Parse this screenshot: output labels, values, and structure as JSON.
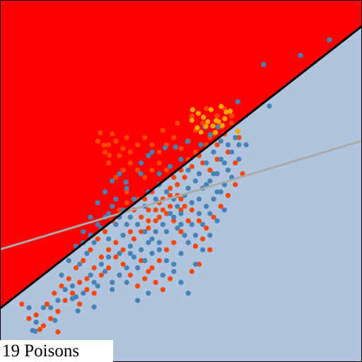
{
  "caption": "19 Poisons",
  "colors": {
    "region_above": "#ff0000",
    "region_below": "#b0c4de",
    "boundary_true": "#000000",
    "boundary_poisoned": "#a9a9a9",
    "class_a": "#4682b4",
    "class_b": "#ff4500",
    "poison": "#ffa500"
  },
  "chart_data": {
    "type": "scatter",
    "xlim": [
      0,
      1
    ],
    "ylim": [
      0,
      1
    ],
    "grid": false,
    "legend": "none",
    "true_boundary": {
      "slope": 0.78,
      "intercept": 0.148
    },
    "poisoned_boundary": {
      "slope": 0.3,
      "intercept": 0.311
    },
    "poison_points": [
      [
        0.532,
        0.697
      ],
      [
        0.548,
        0.687
      ],
      [
        0.562,
        0.676
      ],
      [
        0.574,
        0.664
      ],
      [
        0.588,
        0.652
      ],
      [
        0.604,
        0.664
      ],
      [
        0.621,
        0.672
      ],
      [
        0.636,
        0.693
      ],
      [
        0.657,
        0.637
      ],
      [
        0.53,
        0.668
      ],
      [
        0.569,
        0.651
      ],
      [
        0.597,
        0.667
      ],
      [
        0.614,
        0.653
      ],
      [
        0.583,
        0.697
      ],
      [
        0.555,
        0.635
      ],
      [
        0.595,
        0.634
      ],
      [
        0.611,
        0.706
      ],
      [
        0.545,
        0.647
      ],
      [
        0.625,
        0.69
      ]
    ],
    "class_a_points": [
      [
        0.91,
        0.89
      ],
      [
        0.83,
        0.847
      ],
      [
        0.728,
        0.822
      ],
      [
        0.744,
        0.707
      ],
      [
        0.657,
        0.719
      ],
      [
        0.602,
        0.649
      ],
      [
        0.566,
        0.649
      ],
      [
        0.581,
        0.628
      ],
      [
        0.555,
        0.6
      ],
      [
        0.518,
        0.609
      ],
      [
        0.485,
        0.594
      ],
      [
        0.456,
        0.592
      ],
      [
        0.41,
        0.57
      ],
      [
        0.389,
        0.52
      ],
      [
        0.348,
        0.497
      ],
      [
        0.44,
        0.52
      ],
      [
        0.47,
        0.54
      ],
      [
        0.5,
        0.56
      ],
      [
        0.52,
        0.53
      ],
      [
        0.54,
        0.5
      ],
      [
        0.56,
        0.48
      ],
      [
        0.58,
        0.5
      ],
      [
        0.6,
        0.52
      ],
      [
        0.62,
        0.55
      ],
      [
        0.64,
        0.58
      ],
      [
        0.66,
        0.6
      ],
      [
        0.63,
        0.53
      ],
      [
        0.61,
        0.47
      ],
      [
        0.59,
        0.45
      ],
      [
        0.57,
        0.43
      ],
      [
        0.55,
        0.41
      ],
      [
        0.53,
        0.44
      ],
      [
        0.51,
        0.46
      ],
      [
        0.49,
        0.43
      ],
      [
        0.47,
        0.41
      ],
      [
        0.45,
        0.38
      ],
      [
        0.43,
        0.36
      ],
      [
        0.41,
        0.33
      ],
      [
        0.39,
        0.31
      ],
      [
        0.37,
        0.29
      ],
      [
        0.35,
        0.26
      ],
      [
        0.33,
        0.24
      ],
      [
        0.31,
        0.22
      ],
      [
        0.29,
        0.25
      ],
      [
        0.27,
        0.21
      ],
      [
        0.25,
        0.24
      ],
      [
        0.23,
        0.19
      ],
      [
        0.21,
        0.18
      ],
      [
        0.2,
        0.21
      ],
      [
        0.18,
        0.2
      ],
      [
        0.16,
        0.17
      ],
      [
        0.14,
        0.15
      ],
      [
        0.12,
        0.15
      ],
      [
        0.1,
        0.11
      ],
      [
        0.08,
        0.15
      ],
      [
        0.09,
        0.087
      ],
      [
        0.097,
        0.085
      ],
      [
        0.152,
        0.115
      ],
      [
        0.2,
        0.175
      ],
      [
        0.215,
        0.141
      ],
      [
        0.26,
        0.152
      ],
      [
        0.31,
        0.2
      ],
      [
        0.35,
        0.22
      ],
      [
        0.38,
        0.17
      ],
      [
        0.41,
        0.19
      ],
      [
        0.45,
        0.24
      ],
      [
        0.48,
        0.27
      ],
      [
        0.5,
        0.3
      ],
      [
        0.52,
        0.33
      ],
      [
        0.5,
        0.38
      ],
      [
        0.48,
        0.4
      ],
      [
        0.46,
        0.36
      ],
      [
        0.44,
        0.33
      ],
      [
        0.42,
        0.3
      ],
      [
        0.4,
        0.28
      ],
      [
        0.38,
        0.26
      ],
      [
        0.36,
        0.32
      ],
      [
        0.34,
        0.35
      ],
      [
        0.32,
        0.38
      ],
      [
        0.3,
        0.34
      ],
      [
        0.28,
        0.37
      ],
      [
        0.26,
        0.33
      ],
      [
        0.24,
        0.3
      ],
      [
        0.22,
        0.27
      ],
      [
        0.3,
        0.41
      ],
      [
        0.32,
        0.45
      ],
      [
        0.34,
        0.42
      ],
      [
        0.36,
        0.4
      ],
      [
        0.38,
        0.38
      ],
      [
        0.4,
        0.36
      ],
      [
        0.42,
        0.34
      ],
      [
        0.44,
        0.31
      ],
      [
        0.46,
        0.28
      ],
      [
        0.48,
        0.25
      ],
      [
        0.5,
        0.22
      ],
      [
        0.52,
        0.19
      ],
      [
        0.54,
        0.27
      ],
      [
        0.56,
        0.31
      ],
      [
        0.58,
        0.35
      ],
      [
        0.6,
        0.39
      ],
      [
        0.62,
        0.42
      ],
      [
        0.58,
        0.41
      ],
      [
        0.56,
        0.38
      ],
      [
        0.54,
        0.35
      ],
      [
        0.5,
        0.41
      ],
      [
        0.48,
        0.45
      ],
      [
        0.52,
        0.48
      ],
      [
        0.55,
        0.52
      ],
      [
        0.57,
        0.55
      ],
      [
        0.59,
        0.58
      ],
      [
        0.61,
        0.61
      ],
      [
        0.43,
        0.45
      ],
      [
        0.4,
        0.43
      ],
      [
        0.37,
        0.45
      ],
      [
        0.35,
        0.48
      ],
      [
        0.39,
        0.55
      ],
      [
        0.42,
        0.58
      ],
      [
        0.33,
        0.52
      ],
      [
        0.31,
        0.5
      ],
      [
        0.29,
        0.47
      ],
      [
        0.27,
        0.44
      ],
      [
        0.25,
        0.4
      ],
      [
        0.23,
        0.36
      ],
      [
        0.21,
        0.32
      ],
      [
        0.19,
        0.28
      ],
      [
        0.17,
        0.24
      ],
      [
        0.44,
        0.49
      ],
      [
        0.46,
        0.47
      ],
      [
        0.41,
        0.47
      ],
      [
        0.36,
        0.3
      ],
      [
        0.33,
        0.3
      ],
      [
        0.3,
        0.29
      ],
      [
        0.28,
        0.27
      ],
      [
        0.26,
        0.22
      ],
      [
        0.49,
        0.37
      ],
      [
        0.51,
        0.35
      ],
      [
        0.53,
        0.38
      ],
      [
        0.55,
        0.45
      ],
      [
        0.57,
        0.49
      ],
      [
        0.6,
        0.47
      ],
      [
        0.62,
        0.49
      ],
      [
        0.64,
        0.51
      ],
      [
        0.66,
        0.56
      ],
      [
        0.68,
        0.6
      ],
      [
        0.65,
        0.62
      ],
      [
        0.63,
        0.6
      ],
      [
        0.61,
        0.56
      ],
      [
        0.59,
        0.52
      ],
      [
        0.35,
        0.38
      ],
      [
        0.33,
        0.4
      ],
      [
        0.31,
        0.43
      ],
      [
        0.29,
        0.4
      ],
      [
        0.27,
        0.38
      ],
      [
        0.25,
        0.35
      ],
      [
        0.23,
        0.33
      ]
    ],
    "class_b_points": [
      [
        0.277,
        0.633
      ],
      [
        0.287,
        0.599
      ],
      [
        0.302,
        0.571
      ],
      [
        0.3,
        0.6
      ],
      [
        0.32,
        0.61
      ],
      [
        0.34,
        0.59
      ],
      [
        0.36,
        0.58
      ],
      [
        0.38,
        0.6
      ],
      [
        0.4,
        0.62
      ],
      [
        0.42,
        0.6
      ],
      [
        0.44,
        0.58
      ],
      [
        0.46,
        0.6
      ],
      [
        0.48,
        0.62
      ],
      [
        0.5,
        0.59
      ],
      [
        0.52,
        0.61
      ],
      [
        0.54,
        0.64
      ],
      [
        0.56,
        0.66
      ],
      [
        0.58,
        0.62
      ],
      [
        0.6,
        0.6
      ],
      [
        0.62,
        0.63
      ],
      [
        0.64,
        0.66
      ],
      [
        0.66,
        0.62
      ],
      [
        0.6,
        0.56
      ],
      [
        0.58,
        0.53
      ],
      [
        0.56,
        0.55
      ],
      [
        0.54,
        0.58
      ],
      [
        0.52,
        0.56
      ],
      [
        0.5,
        0.53
      ],
      [
        0.48,
        0.51
      ],
      [
        0.46,
        0.53
      ],
      [
        0.44,
        0.55
      ],
      [
        0.42,
        0.53
      ],
      [
        0.4,
        0.51
      ],
      [
        0.38,
        0.53
      ],
      [
        0.36,
        0.55
      ],
      [
        0.34,
        0.53
      ],
      [
        0.32,
        0.51
      ],
      [
        0.35,
        0.47
      ],
      [
        0.38,
        0.45
      ],
      [
        0.41,
        0.42
      ],
      [
        0.44,
        0.4
      ],
      [
        0.47,
        0.43
      ],
      [
        0.5,
        0.45
      ],
      [
        0.53,
        0.42
      ],
      [
        0.55,
        0.39
      ],
      [
        0.57,
        0.37
      ],
      [
        0.59,
        0.4
      ],
      [
        0.61,
        0.43
      ],
      [
        0.63,
        0.46
      ],
      [
        0.65,
        0.49
      ],
      [
        0.67,
        0.52
      ],
      [
        0.52,
        0.39
      ],
      [
        0.5,
        0.36
      ],
      [
        0.48,
        0.33
      ],
      [
        0.46,
        0.31
      ],
      [
        0.44,
        0.28
      ],
      [
        0.42,
        0.26
      ],
      [
        0.4,
        0.23
      ],
      [
        0.38,
        0.21
      ],
      [
        0.36,
        0.24
      ],
      [
        0.34,
        0.27
      ],
      [
        0.32,
        0.33
      ],
      [
        0.3,
        0.31
      ],
      [
        0.28,
        0.29
      ],
      [
        0.26,
        0.26
      ],
      [
        0.24,
        0.23
      ],
      [
        0.22,
        0.22
      ],
      [
        0.2,
        0.19
      ],
      [
        0.18,
        0.17
      ],
      [
        0.16,
        0.14
      ],
      [
        0.14,
        0.12
      ],
      [
        0.12,
        0.1
      ],
      [
        0.1,
        0.13
      ],
      [
        0.08,
        0.12
      ],
      [
        0.06,
        0.16
      ],
      [
        0.16,
        0.083
      ],
      [
        0.11,
        0.09
      ],
      [
        0.13,
        0.16
      ],
      [
        0.15,
        0.19
      ],
      [
        0.17,
        0.21
      ],
      [
        0.19,
        0.23
      ],
      [
        0.21,
        0.26
      ],
      [
        0.23,
        0.28
      ],
      [
        0.25,
        0.31
      ],
      [
        0.27,
        0.34
      ],
      [
        0.29,
        0.36
      ],
      [
        0.31,
        0.39
      ],
      [
        0.33,
        0.42
      ],
      [
        0.35,
        0.44
      ],
      [
        0.37,
        0.42
      ],
      [
        0.39,
        0.4
      ],
      [
        0.41,
        0.37
      ],
      [
        0.43,
        0.39
      ],
      [
        0.45,
        0.42
      ],
      [
        0.47,
        0.46
      ],
      [
        0.49,
        0.49
      ],
      [
        0.51,
        0.51
      ],
      [
        0.53,
        0.54
      ],
      [
        0.55,
        0.57
      ],
      [
        0.57,
        0.6
      ],
      [
        0.59,
        0.63
      ],
      [
        0.61,
        0.65
      ],
      [
        0.63,
        0.58
      ],
      [
        0.65,
        0.55
      ],
      [
        0.54,
        0.32
      ],
      [
        0.56,
        0.34
      ],
      [
        0.58,
        0.31
      ],
      [
        0.55,
        0.27
      ],
      [
        0.53,
        0.25
      ],
      [
        0.47,
        0.23
      ],
      [
        0.45,
        0.2
      ],
      [
        0.43,
        0.22
      ],
      [
        0.41,
        0.25
      ],
      [
        0.39,
        0.28
      ],
      [
        0.37,
        0.34
      ],
      [
        0.39,
        0.36
      ],
      [
        0.41,
        0.39
      ],
      [
        0.43,
        0.42
      ],
      [
        0.45,
        0.45
      ],
      [
        0.47,
        0.48
      ],
      [
        0.49,
        0.46
      ],
      [
        0.51,
        0.43
      ],
      [
        0.3,
        0.55
      ],
      [
        0.33,
        0.57
      ],
      [
        0.29,
        0.58
      ],
      [
        0.27,
        0.61
      ],
      [
        0.31,
        0.63
      ],
      [
        0.35,
        0.62
      ],
      [
        0.45,
        0.64
      ],
      [
        0.49,
        0.66
      ],
      [
        0.53,
        0.68
      ],
      [
        0.57,
        0.7
      ],
      [
        0.6,
        0.68
      ],
      [
        0.62,
        0.7
      ],
      [
        0.64,
        0.68
      ],
      [
        0.4,
        0.45
      ],
      [
        0.42,
        0.47
      ],
      [
        0.44,
        0.44
      ],
      [
        0.46,
        0.41
      ],
      [
        0.48,
        0.39
      ],
      [
        0.5,
        0.42
      ],
      [
        0.36,
        0.36
      ],
      [
        0.34,
        0.31
      ],
      [
        0.32,
        0.29
      ],
      [
        0.3,
        0.26
      ],
      [
        0.28,
        0.24
      ],
      [
        0.26,
        0.19
      ],
      [
        0.24,
        0.2
      ],
      [
        0.22,
        0.16
      ]
    ]
  }
}
